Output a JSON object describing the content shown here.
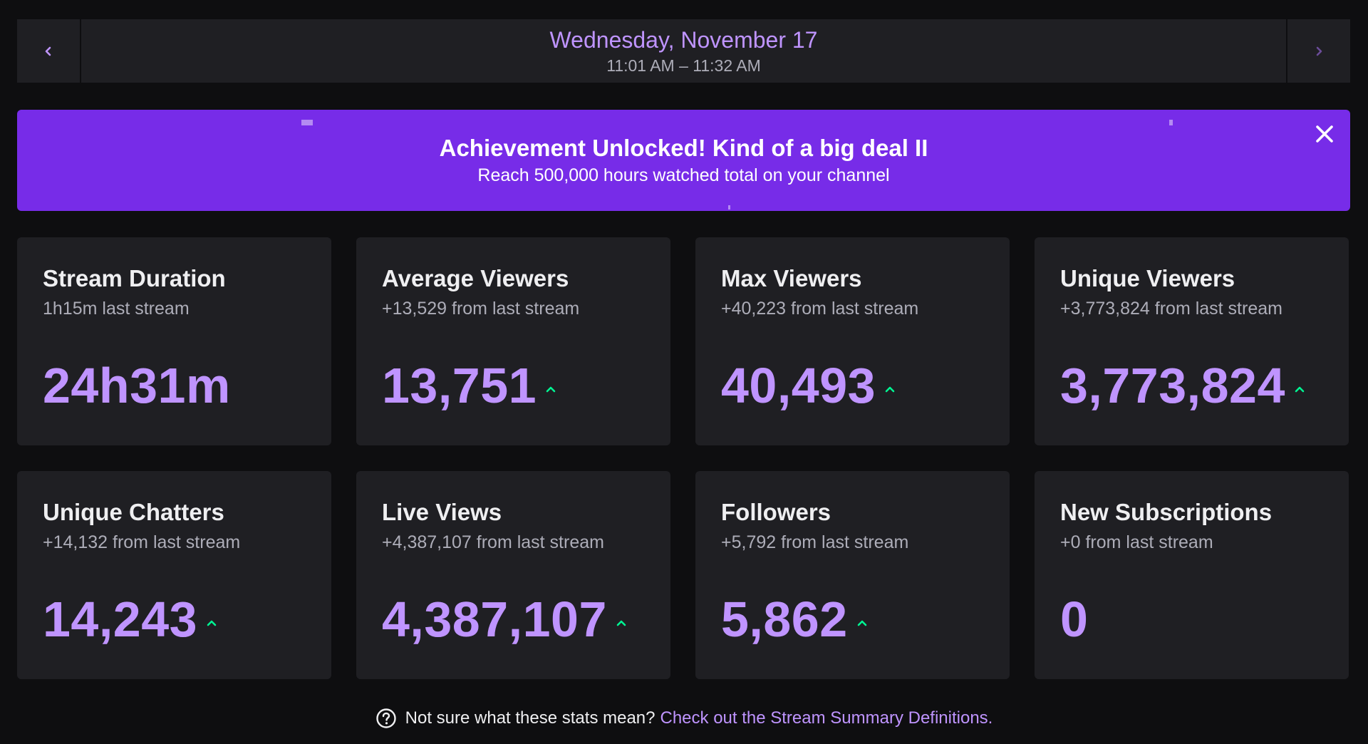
{
  "date_nav": {
    "date": "Wednesday, November 17",
    "time_range": "11:01 AM – 11:32 AM",
    "prev_icon": "chevron-left-icon",
    "next_icon": "chevron-right-icon"
  },
  "achievement": {
    "title": "Achievement Unlocked! Kind of a big deal II",
    "description": "Reach 500,000 hours watched total on your channel",
    "close_icon": "close-icon",
    "background_color": "#772ce8"
  },
  "stats": [
    {
      "title": "Stream Duration",
      "subtitle": "1h15m last stream",
      "value": "24h31m",
      "trend": "none"
    },
    {
      "title": "Average Viewers",
      "subtitle": "+13,529 from last stream",
      "value": "13,751",
      "trend": "up"
    },
    {
      "title": "Max Viewers",
      "subtitle": "+40,223 from last stream",
      "value": "40,493",
      "trend": "up"
    },
    {
      "title": "Unique Viewers",
      "subtitle": "+3,773,824 from last stream",
      "value": "3,773,824",
      "trend": "up"
    },
    {
      "title": "Unique Chatters",
      "subtitle": "+14,132 from last stream",
      "value": "14,243",
      "trend": "up"
    },
    {
      "title": "Live Views",
      "subtitle": "+4,387,107 from last stream",
      "value": "4,387,107",
      "trend": "up"
    },
    {
      "title": "Followers",
      "subtitle": "+5,792 from last stream",
      "value": "5,862",
      "trend": "up"
    },
    {
      "title": "New Subscriptions",
      "subtitle": "+0 from last stream",
      "value": "0",
      "trend": "none"
    }
  ],
  "footer": {
    "help_icon": "question-circle-icon",
    "text": "Not sure what these stats mean?",
    "link_text": "Check out the Stream Summary Definitions."
  },
  "colors": {
    "accent": "#bf94ff",
    "trend_up": "#00f593",
    "card_bg": "#1f1f23",
    "page_bg": "#0e0e10"
  }
}
